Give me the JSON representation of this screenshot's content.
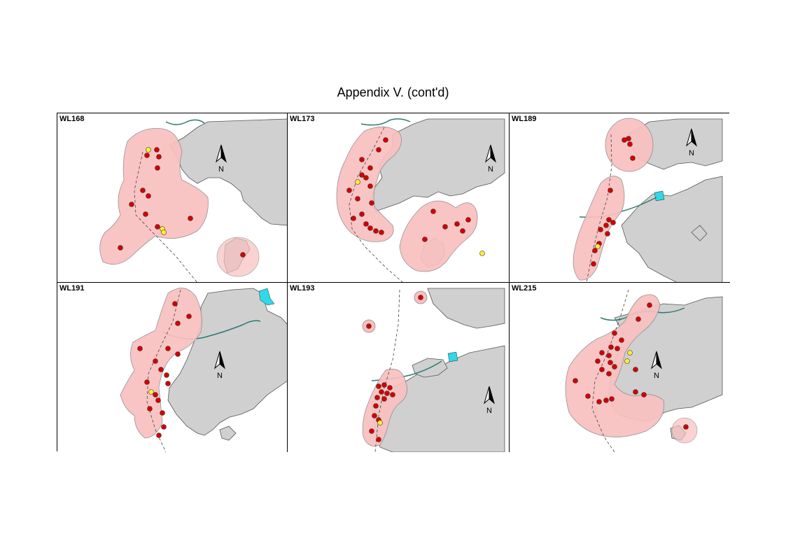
{
  "title": "Appendix V.  (cont'd)",
  "colors": {
    "buffer_fill": "#f9c0c0",
    "buffer_stroke": "#8c8c8c",
    "land": "#d0d0d0",
    "land_stroke": "#555555",
    "sighting_red": "#d40000",
    "sighting_yellow": "#ffee33",
    "water_feature": "#30d8e8",
    "river": "#2b7a70"
  },
  "north_arrow": {
    "label": "N",
    "icon": "north-arrow-icon"
  },
  "panels": [
    {
      "id": "WL168",
      "label": "WL168"
    },
    {
      "id": "WL173",
      "label": "WL173"
    },
    {
      "id": "WL189",
      "label": "WL189"
    },
    {
      "id": "WL191",
      "label": "WL191"
    },
    {
      "id": "WL193",
      "label": "WL193"
    },
    {
      "id": "WL215",
      "label": "WL215"
    }
  ]
}
